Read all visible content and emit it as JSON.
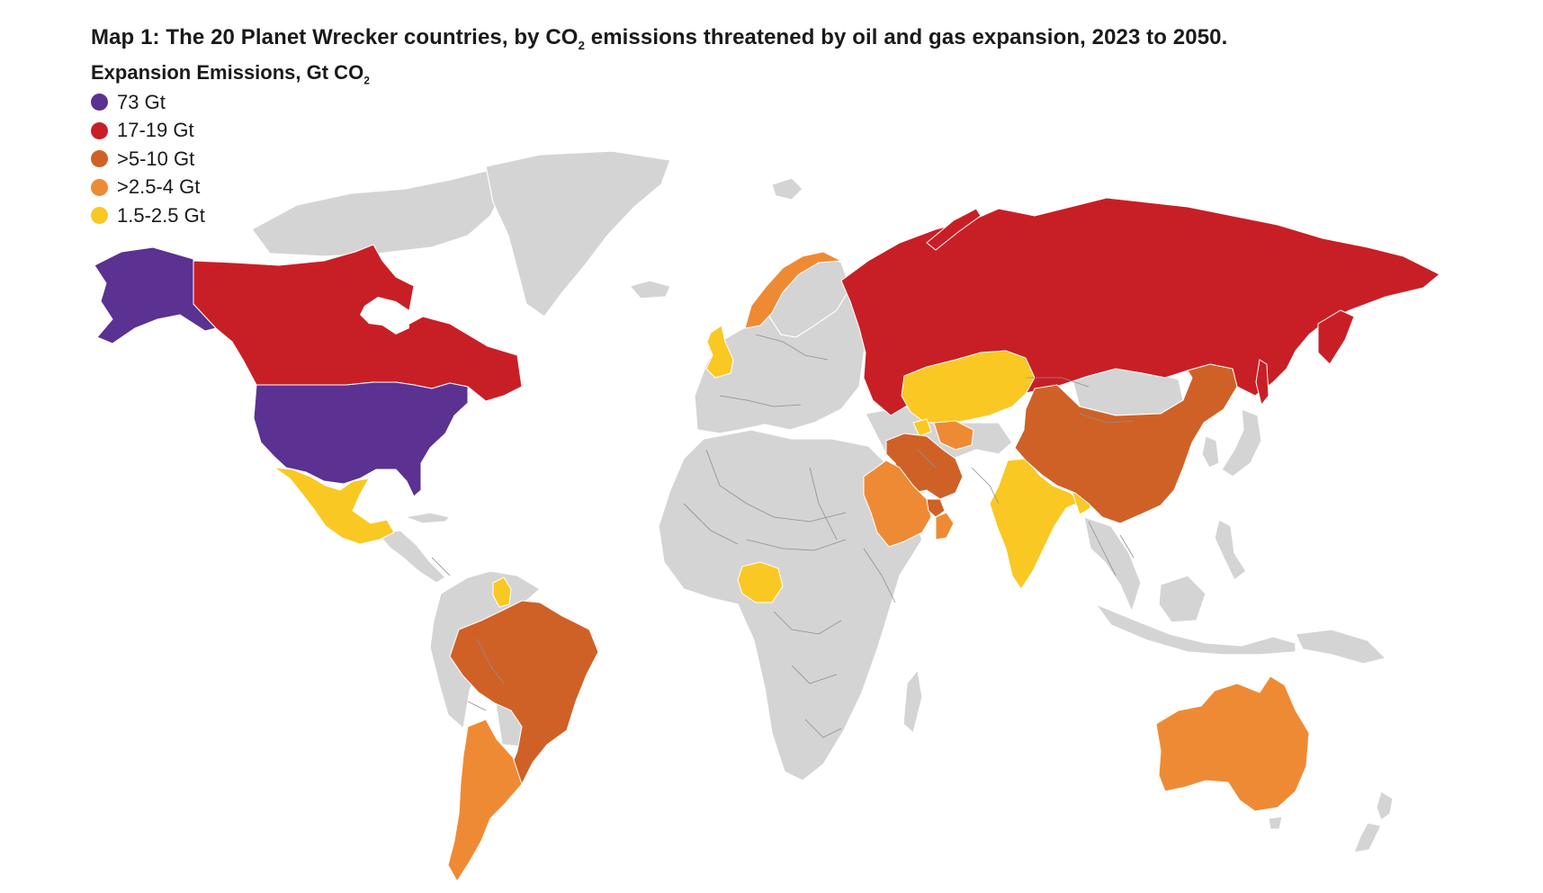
{
  "title": {
    "text_before": "Map 1: The 20 Planet Wrecker countries, by CO",
    "sub": "2",
    "text_after": " emissions threatened by oil and gas expansion, 2023 to 2050."
  },
  "legend": {
    "title": "Expansion Emissions, Gt CO",
    "title_sub": "2",
    "items": [
      {
        "label": "73 Gt",
        "color": "#5b3192"
      },
      {
        "label": "17-19 Gt",
        "color": "#c81f26"
      },
      {
        "label": ">5-10 Gt",
        "color": "#cf6127"
      },
      {
        "label": ">2.5-4 Gt",
        "color": "#ef8a34"
      },
      {
        "label": "1.5-2.5 Gt",
        "color": "#f9c823"
      }
    ]
  },
  "colors": {
    "other_land": "#d4d4d4",
    "border": "#8f8f8f",
    "background": "#ffffff"
  }
}
